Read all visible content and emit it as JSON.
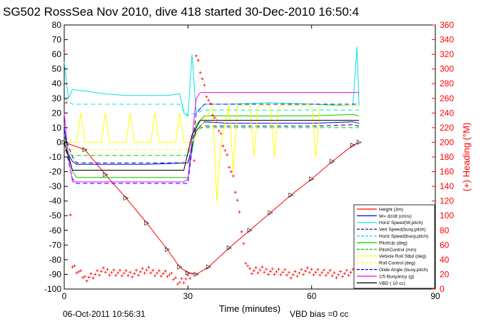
{
  "title": "SG502 RossSea Nov 2010, dive 418 started 30-Dec-2010 16:50:4",
  "footer": {
    "timestamp": "06-Oct-2011 10:56:31",
    "vbd_bias": "VBD bias =0 cc"
  },
  "chart_data": {
    "type": "line",
    "xlabel": "Time (minutes)",
    "ylabel_right": "(+) Heading (°M)",
    "xlim": [
      0,
      90
    ],
    "ylim": [
      -100,
      80
    ],
    "ylim_right": [
      0,
      360
    ],
    "xticks": [
      0,
      30,
      60,
      90
    ],
    "yticks": [
      -100,
      -90,
      -80,
      -70,
      -60,
      -50,
      -40,
      -30,
      -20,
      -10,
      0,
      10,
      20,
      30,
      40,
      50,
      60,
      70,
      80
    ],
    "yticks_right": [
      0,
      20,
      40,
      60,
      80,
      100,
      120,
      140,
      160,
      180,
      200,
      220,
      240,
      260,
      280,
      300,
      320,
      340,
      360
    ],
    "grid": false,
    "legend_position": "bottom-right",
    "series": [
      {
        "name": "Height (3m)",
        "color": "#ff0000",
        "dash": "",
        "points": [
          [
            0,
            0
          ],
          [
            5,
            -5
          ],
          [
            10,
            -22
          ],
          [
            15,
            -38
          ],
          [
            20,
            -55
          ],
          [
            25,
            -73
          ],
          [
            28,
            -85
          ],
          [
            30,
            -89
          ],
          [
            32,
            -90
          ],
          [
            35,
            -85
          ],
          [
            40,
            -72
          ],
          [
            45,
            -60
          ],
          [
            50,
            -48
          ],
          [
            55,
            -36
          ],
          [
            60,
            -25
          ],
          [
            65,
            -13
          ],
          [
            70,
            -2
          ],
          [
            71.5,
            0
          ]
        ]
      },
      {
        "name": "W= dz/dt (cm/s)",
        "color": "#0000ff",
        "dash": "",
        "points": [
          [
            0,
            10
          ],
          [
            1,
            -8
          ],
          [
            2,
            -13
          ],
          [
            3,
            -15
          ],
          [
            10,
            -15
          ],
          [
            20,
            -15
          ],
          [
            30,
            -14
          ],
          [
            32,
            8
          ],
          [
            34,
            14
          ],
          [
            40,
            13
          ],
          [
            50,
            13
          ],
          [
            60,
            13
          ],
          [
            70,
            14
          ],
          [
            71.5,
            13
          ]
        ]
      },
      {
        "name": "Horiz Speed(W,pitch)",
        "color": "#00e5e5",
        "dash": "",
        "points": [
          [
            0,
            55
          ],
          [
            1,
            30
          ],
          [
            2,
            36
          ],
          [
            5,
            35
          ],
          [
            10,
            33
          ],
          [
            15,
            32
          ],
          [
            20,
            32
          ],
          [
            25,
            32
          ],
          [
            28,
            33
          ],
          [
            29,
            20
          ],
          [
            30,
            18
          ],
          [
            31,
            60
          ],
          [
            32,
            20
          ],
          [
            34,
            26
          ],
          [
            40,
            26
          ],
          [
            50,
            27
          ],
          [
            60,
            26
          ],
          [
            70,
            25
          ],
          [
            71,
            65
          ],
          [
            71.5,
            25
          ]
        ]
      },
      {
        "name": "Vert Speed(buoy,pitch)",
        "color": "#00008b",
        "dash": "6 4",
        "points": [
          [
            0,
            5
          ],
          [
            2,
            -10
          ],
          [
            3,
            -14
          ],
          [
            10,
            -14
          ],
          [
            20,
            -14
          ],
          [
            30,
            -14
          ],
          [
            32,
            8
          ],
          [
            34,
            11
          ],
          [
            40,
            11
          ],
          [
            50,
            11
          ],
          [
            60,
            11
          ],
          [
            70,
            12
          ],
          [
            71.5,
            11
          ]
        ]
      },
      {
        "name": "Horiz Speed(buoy,pitch)",
        "color": "#00e5e5",
        "dash": "6 4",
        "points": [
          [
            0,
            30
          ],
          [
            2,
            26
          ],
          [
            3,
            26
          ],
          [
            10,
            26
          ],
          [
            20,
            26
          ],
          [
            28,
            26
          ],
          [
            30,
            18
          ],
          [
            32,
            20
          ],
          [
            34,
            22
          ],
          [
            40,
            22
          ],
          [
            50,
            22
          ],
          [
            60,
            22
          ],
          [
            70,
            22
          ],
          [
            71.5,
            22
          ]
        ]
      },
      {
        "name": "PitchUp (deg)",
        "color": "#00cc00",
        "dash": "",
        "points": [
          [
            0,
            5
          ],
          [
            2,
            -20
          ],
          [
            3,
            -24
          ],
          [
            10,
            -24
          ],
          [
            20,
            -24
          ],
          [
            30,
            -24
          ],
          [
            32,
            12
          ],
          [
            34,
            18
          ],
          [
            40,
            18
          ],
          [
            50,
            18
          ],
          [
            60,
            18
          ],
          [
            70,
            19
          ],
          [
            71.5,
            18
          ]
        ]
      },
      {
        "name": "PitchControl (mm)",
        "color": "#00cc00",
        "dash": "6 4",
        "points": [
          [
            0,
            -5
          ],
          [
            2,
            -9
          ],
          [
            10,
            -9
          ],
          [
            20,
            -9
          ],
          [
            30,
            -9
          ],
          [
            32,
            10
          ],
          [
            34,
            10
          ],
          [
            50,
            10
          ],
          [
            60,
            10
          ],
          [
            70,
            10
          ],
          [
            71.5,
            10
          ]
        ]
      },
      {
        "name": "Vehicle Roll Stbd (deg)",
        "color": "#ffff00",
        "dash": "",
        "points": [
          [
            0,
            0
          ],
          [
            3,
            0
          ],
          [
            4,
            20
          ],
          [
            5,
            0
          ],
          [
            9,
            0
          ],
          [
            10,
            20
          ],
          [
            11,
            0
          ],
          [
            15,
            0
          ],
          [
            16,
            20
          ],
          [
            17,
            0
          ],
          [
            21,
            0
          ],
          [
            22,
            20
          ],
          [
            23,
            0
          ],
          [
            27,
            0
          ],
          [
            28,
            20
          ],
          [
            29,
            0
          ],
          [
            31,
            0
          ],
          [
            33,
            10
          ],
          [
            36,
            25
          ],
          [
            37,
            -40
          ],
          [
            38,
            0
          ],
          [
            40,
            25
          ],
          [
            41,
            -20
          ],
          [
            42,
            25
          ],
          [
            45,
            25
          ],
          [
            46,
            -10
          ],
          [
            47,
            25
          ],
          [
            50,
            25
          ],
          [
            51,
            -10
          ],
          [
            52,
            25
          ],
          [
            60,
            25
          ],
          [
            61,
            -10
          ],
          [
            62,
            25
          ],
          [
            70,
            25
          ],
          [
            71.5,
            25
          ]
        ]
      },
      {
        "name": "Roll Control (deg)",
        "color": "#ffff00",
        "dash": "6 4",
        "points": [
          [
            0,
            -5
          ],
          [
            5,
            -5
          ],
          [
            10,
            -5
          ],
          [
            20,
            -5
          ],
          [
            30,
            -5
          ],
          [
            32,
            15
          ],
          [
            40,
            15
          ],
          [
            60,
            15
          ],
          [
            71.5,
            15
          ]
        ]
      },
      {
        "name": "Glide Angle (buoy,pitch)",
        "color": "#0000ff",
        "dash": "6 4",
        "points": [
          [
            0,
            0
          ],
          [
            2,
            -25
          ],
          [
            3,
            -28
          ],
          [
            10,
            -28
          ],
          [
            20,
            -28
          ],
          [
            30,
            -28
          ],
          [
            32,
            20
          ],
          [
            34,
            26
          ],
          [
            50,
            26
          ],
          [
            70,
            26
          ],
          [
            71.5,
            26
          ]
        ]
      },
      {
        "name": "1/5 Buoyancy (g)",
        "color": "#ff00ff",
        "dash": "",
        "points": [
          [
            0,
            20
          ],
          [
            1,
            -10
          ],
          [
            2,
            -27
          ],
          [
            10,
            -27
          ],
          [
            20,
            -27
          ],
          [
            29,
            -27
          ],
          [
            30,
            -25
          ],
          [
            32,
            30
          ],
          [
            33,
            34
          ],
          [
            40,
            34
          ],
          [
            50,
            34
          ],
          [
            60,
            34
          ],
          [
            70,
            34
          ],
          [
            71.5,
            34
          ]
        ]
      },
      {
        "name": "VBD ( 10 cc)",
        "color": "#000000",
        "dash": "",
        "points": [
          [
            0,
            0
          ],
          [
            2,
            -19
          ],
          [
            10,
            -19
          ],
          [
            20,
            -19
          ],
          [
            29,
            -19
          ],
          [
            31,
            5
          ],
          [
            33,
            15
          ],
          [
            40,
            15
          ],
          [
            60,
            15
          ],
          [
            71.5,
            15
          ]
        ]
      }
    ],
    "heading_series": {
      "name": "Heading",
      "color": "#ff0000",
      "marker": "+",
      "axis": "right",
      "points": [
        [
          0,
          330
        ],
        [
          2,
          30
        ],
        [
          5,
          15
        ],
        [
          10,
          25
        ],
        [
          15,
          20
        ],
        [
          20,
          25
        ],
        [
          25,
          20
        ],
        [
          28,
          10
        ],
        [
          30,
          15
        ],
        [
          31,
          20
        ],
        [
          32,
          320
        ],
        [
          33,
          300
        ],
        [
          34,
          275
        ],
        [
          36,
          240
        ],
        [
          38,
          210
        ],
        [
          40,
          170
        ],
        [
          41,
          150
        ],
        [
          42,
          120
        ],
        [
          43,
          80
        ],
        [
          44,
          40
        ],
        [
          45,
          25
        ],
        [
          50,
          25
        ],
        [
          55,
          20
        ],
        [
          60,
          25
        ],
        [
          65,
          20
        ],
        [
          70,
          22
        ],
        [
          71.5,
          20
        ]
      ]
    }
  }
}
